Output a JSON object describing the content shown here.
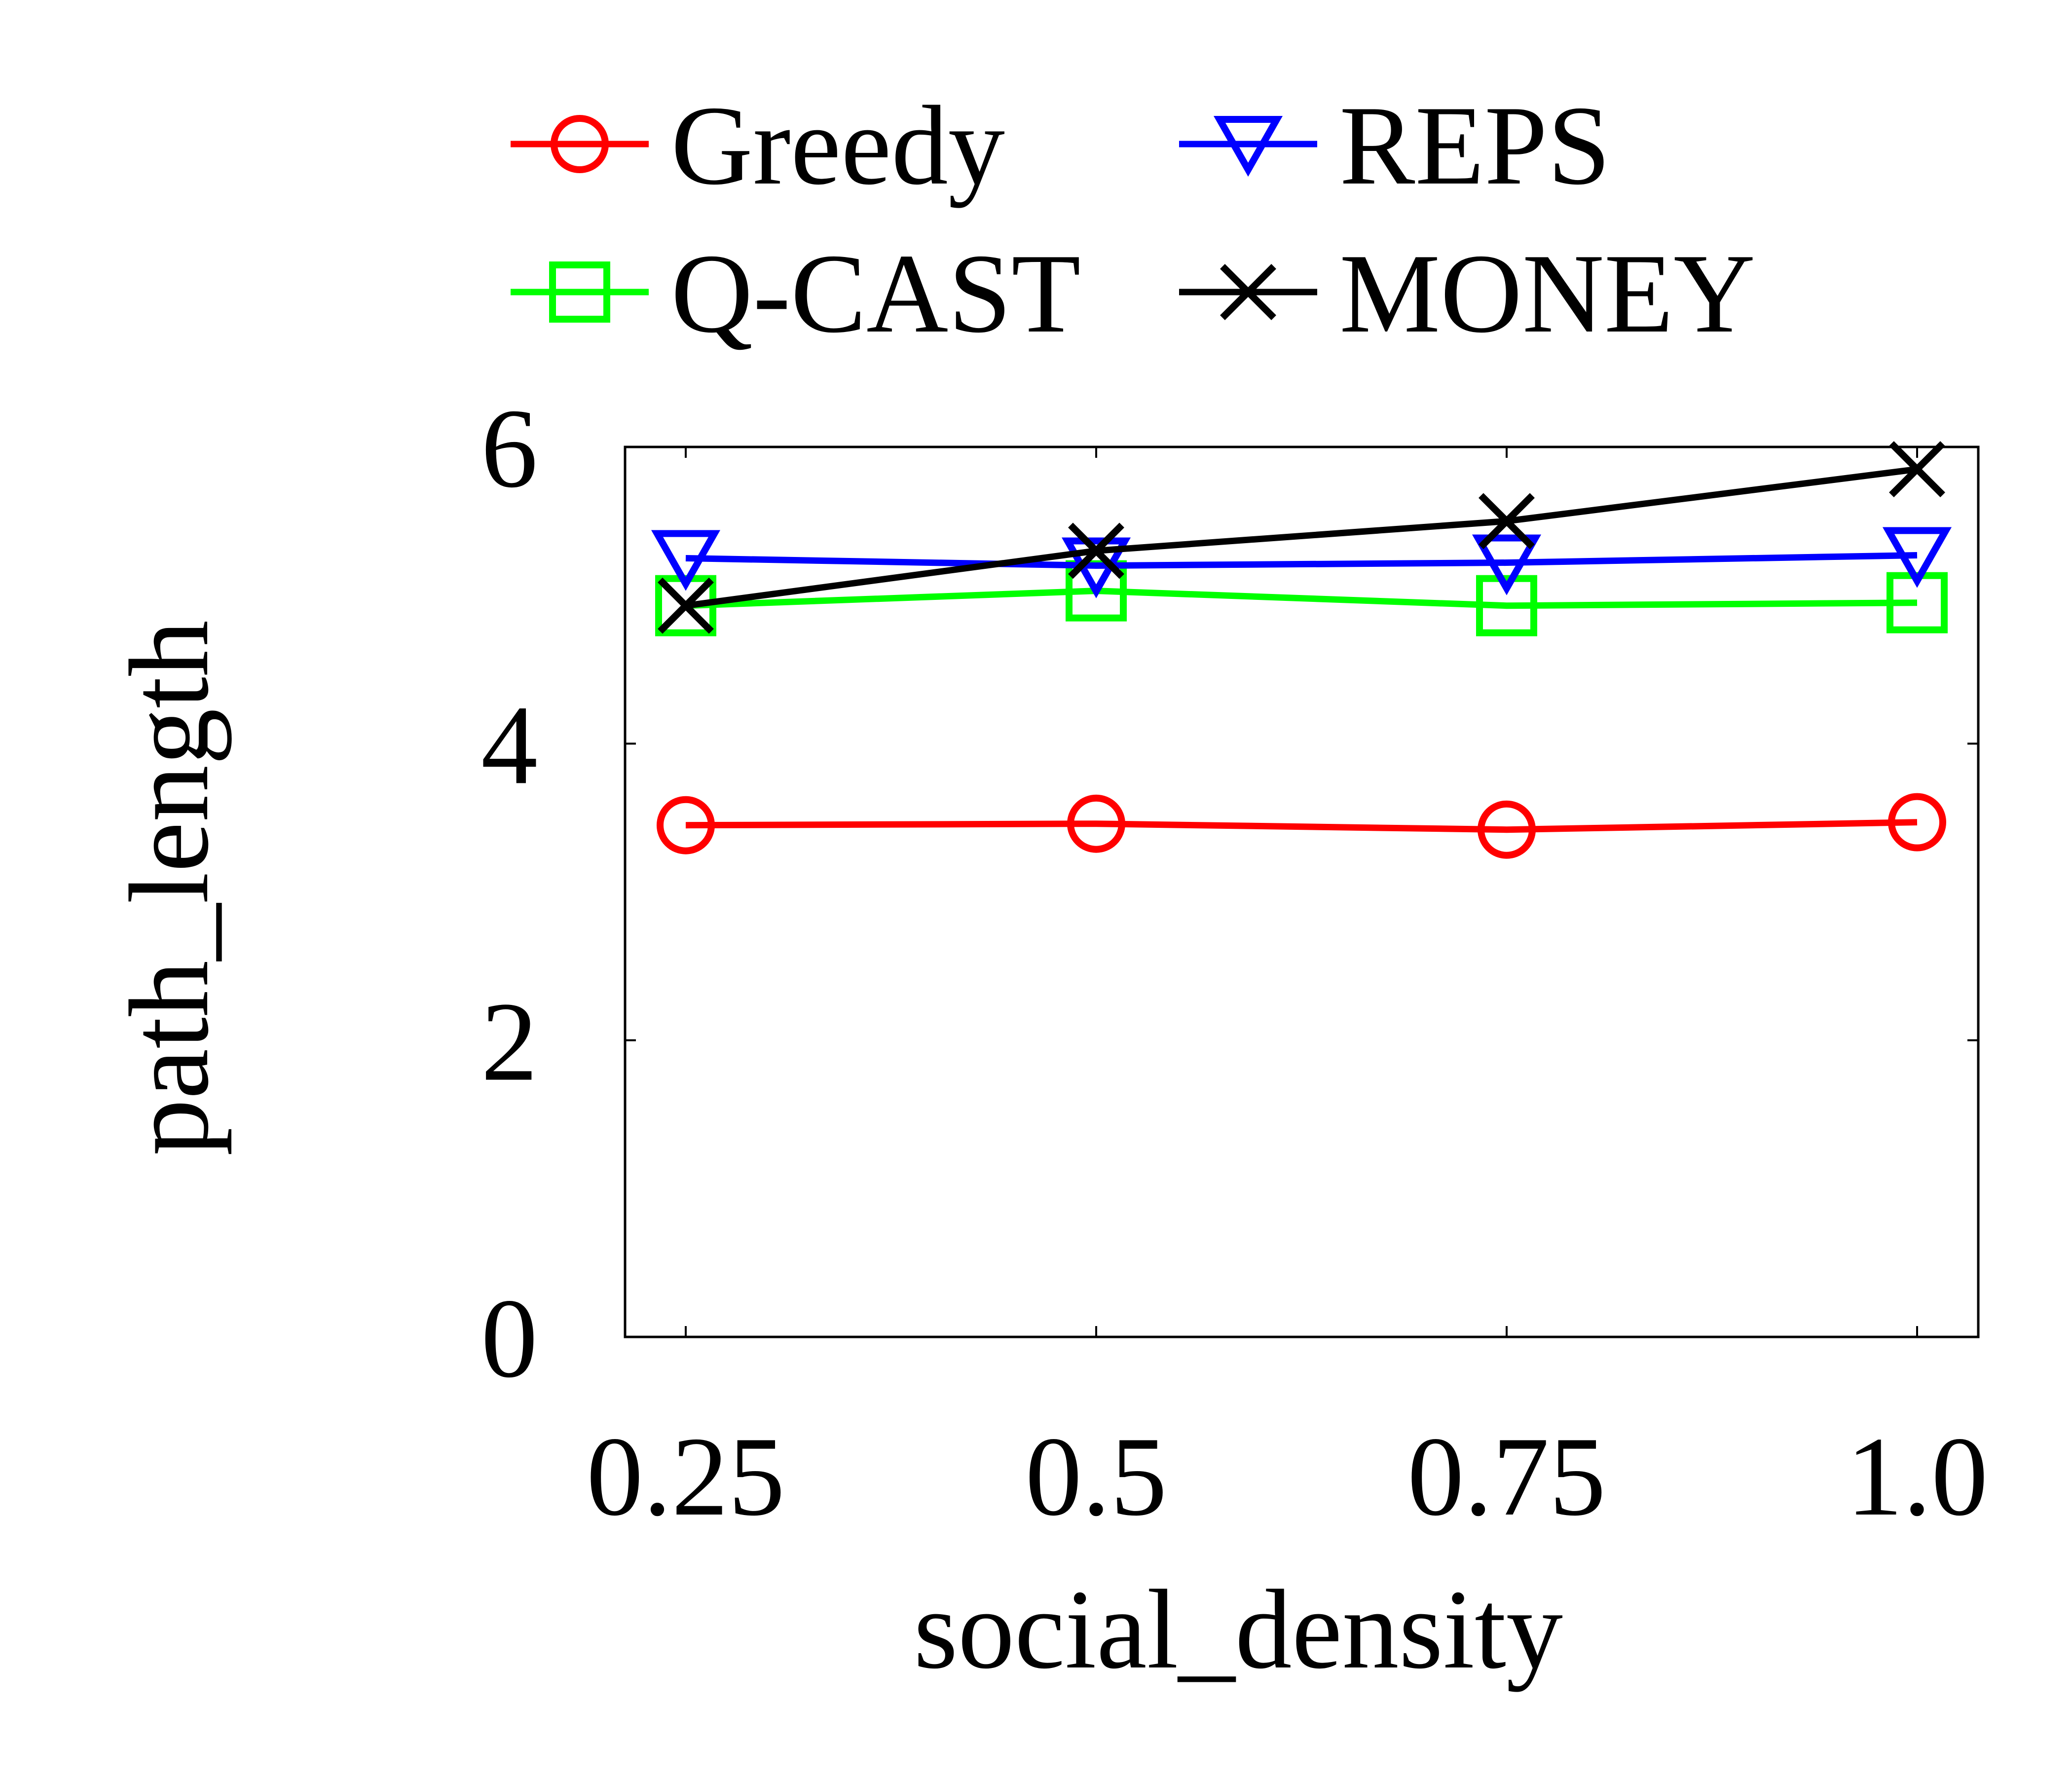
{
  "chart_data": {
    "type": "line",
    "xlabel": "social_density",
    "ylabel": "path_length",
    "categories": [
      "0.25",
      "0.5",
      "0.75",
      "1.0"
    ],
    "ylim": [
      0,
      6
    ],
    "yticks": [
      "0",
      "2",
      "4",
      "6"
    ],
    "grid": false,
    "legend_position": "top",
    "series": [
      {
        "name": "Greedy",
        "color": "#ff0000",
        "marker": "circle",
        "values": [
          3.45,
          3.46,
          3.42,
          3.47
        ]
      },
      {
        "name": "REPS",
        "color": "#0000ff",
        "marker": "triangle-down",
        "values": [
          5.25,
          5.2,
          5.22,
          5.27
        ]
      },
      {
        "name": "Q-CAST",
        "color": "#00ff00",
        "marker": "square",
        "values": [
          4.93,
          5.03,
          4.93,
          4.95
        ]
      },
      {
        "name": "MONEY",
        "color": "#000000",
        "marker": "x",
        "values": [
          4.93,
          5.3,
          5.5,
          5.85
        ]
      }
    ]
  }
}
